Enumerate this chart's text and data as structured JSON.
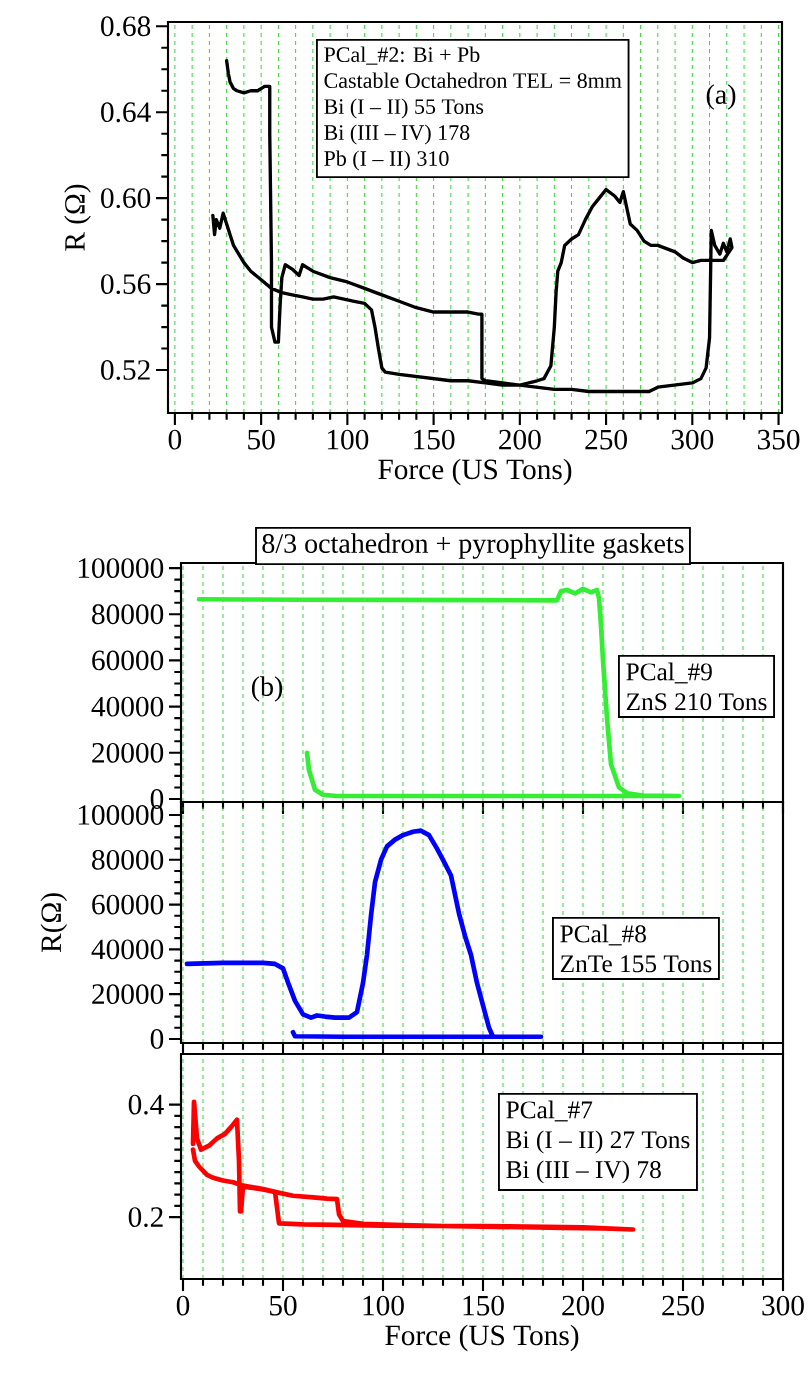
{
  "chart_data": [
    {
      "type": "line",
      "xlabel": "Force (US Tons)",
      "ylabel": "R (Ω)",
      "xlim": [
        -4,
        352
      ],
      "ylim": [
        0.5,
        0.682
      ],
      "xticks": [
        0,
        50,
        100,
        150,
        200,
        250,
        300,
        350
      ],
      "yticks": [
        0.52,
        0.56,
        {
          "value": 0.6,
          "label": "0.60"
        },
        0.64,
        0.68
      ],
      "grid": "x",
      "annotations": [
        "PCal_#2: Bi + Pb",
        "Castable Octahedron TEL = 8mm",
        "Bi (I – II) 55 Tons",
        "Bi (III – IV) 178",
        "Pb (I – II) 310",
        "(a)"
      ],
      "series": [
        {
          "color": "#000000",
          "x": [
            22,
            23,
            24,
            26,
            28,
            30,
            34,
            40,
            44,
            50,
            56,
            62,
            68,
            74,
            80,
            86,
            92,
            98,
            104,
            110,
            114,
            116,
            118,
            120,
            122,
            130,
            160,
            170,
            180,
            190,
            200,
            220,
            230,
            240,
            270,
            275,
            280,
            300,
            305,
            308,
            310,
            311,
            313,
            316,
            318,
            320,
            322,
            323,
            318,
            312,
            305,
            300,
            295,
            290,
            280,
            276,
            272,
            268,
            264,
            260,
            258,
            255,
            250,
            246,
            242,
            238,
            234,
            230,
            226,
            224,
            222,
            221,
            220,
            218,
            214,
            210,
            200,
            190,
            180,
            178,
            178,
            176,
            170,
            150,
            140,
            130,
            120,
            110,
            100,
            90,
            80,
            74,
            72,
            68,
            64,
            62,
            61,
            60,
            58,
            56,
            56,
            55,
            55,
            52,
            48,
            44,
            40,
            36,
            34,
            32,
            31,
            30
          ],
          "values": [
            0.592,
            0.583,
            0.59,
            0.586,
            0.593,
            0.588,
            0.578,
            0.57,
            0.566,
            0.562,
            0.558,
            0.556,
            0.555,
            0.554,
            0.553,
            0.553,
            0.554,
            0.553,
            0.552,
            0.551,
            0.548,
            0.54,
            0.53,
            0.521,
            0.519,
            0.518,
            0.515,
            0.515,
            0.514,
            0.513,
            0.513,
            0.511,
            0.511,
            0.51,
            0.51,
            0.51,
            0.512,
            0.514,
            0.516,
            0.521,
            0.535,
            0.585,
            0.578,
            0.574,
            0.579,
            0.575,
            0.581,
            0.577,
            0.571,
            0.571,
            0.571,
            0.57,
            0.572,
            0.575,
            0.578,
            0.578,
            0.58,
            0.585,
            0.588,
            0.603,
            0.598,
            0.601,
            0.604,
            0.6,
            0.596,
            0.59,
            0.583,
            0.581,
            0.578,
            0.57,
            0.566,
            0.556,
            0.54,
            0.522,
            0.516,
            0.515,
            0.513,
            0.514,
            0.515,
            0.516,
            0.546,
            0.546,
            0.547,
            0.547,
            0.549,
            0.552,
            0.555,
            0.558,
            0.561,
            0.563,
            0.566,
            0.569,
            0.564,
            0.567,
            0.569,
            0.563,
            0.55,
            0.533,
            0.533,
            0.54,
            0.57,
            0.63,
            0.652,
            0.652,
            0.65,
            0.65,
            0.649,
            0.65,
            0.651,
            0.654,
            0.658,
            0.664
          ]
        }
      ]
    },
    {
      "type": "line",
      "title": "8/3 octahedron + pyrophyllite gaskets",
      "xlim": [
        -1,
        300
      ],
      "ylim": [
        -1300,
        102200
      ],
      "xticks": [
        0,
        50,
        100,
        150,
        200,
        250,
        300
      ],
      "yticks": [
        0,
        20000,
        40000,
        60000,
        80000,
        100000
      ],
      "tick_labels": "y",
      "grid": "x",
      "annotations": [
        "(b)",
        "PCal_#9",
        "ZnS 210 Tons"
      ],
      "series": [
        {
          "color": "#33ee33",
          "x": [
            8,
            30,
            60,
            100,
            150,
            187,
            189,
            192,
            196,
            200,
            204,
            207,
            208,
            209,
            210,
            212,
            214,
            218,
            222,
            230,
            248,
            77,
            70,
            66,
            63,
            62
          ],
          "values": [
            86500,
            86400,
            86300,
            86200,
            86100,
            86000,
            90000,
            90500,
            89000,
            91000,
            89500,
            90500,
            87000,
            75000,
            60000,
            35000,
            15000,
            5000,
            2500,
            1500,
            1300,
            1300,
            1800,
            4000,
            12500,
            20000
          ]
        }
      ]
    },
    {
      "type": "line",
      "ylabel": "R(Ω)",
      "xlim": [
        -1,
        300
      ],
      "ylim": [
        -1800,
        105800
      ],
      "xticks": [
        0,
        50,
        100,
        150,
        200,
        250,
        300
      ],
      "yticks": [
        0,
        20000,
        40000,
        60000,
        80000,
        100000
      ],
      "tick_labels": "y",
      "grid": "x",
      "annotations": [
        "PCal_#8",
        "ZnTe 155 Tons"
      ],
      "series": [
        {
          "color": "#0000ff",
          "x": [
            2,
            20,
            40,
            46,
            50,
            53,
            56,
            60,
            64,
            67,
            71,
            76,
            83,
            87,
            90,
            92,
            94,
            96,
            99,
            102,
            106,
            110,
            115,
            119,
            123,
            127,
            130,
            134,
            138,
            141,
            144,
            147,
            150,
            153,
            155,
            179,
            120,
            80,
            56,
            55
          ],
          "values": [
            33500,
            34000,
            34000,
            33500,
            31500,
            24000,
            17000,
            11000,
            9500,
            10500,
            10000,
            9500,
            9500,
            12000,
            25000,
            37500,
            55000,
            70000,
            80000,
            86000,
            89000,
            91000,
            92500,
            93000,
            91000,
            85000,
            80000,
            73000,
            56000,
            46000,
            37500,
            25000,
            15000,
            5000,
            1000,
            1000,
            1000,
            1000,
            1200,
            3000
          ]
        }
      ]
    },
    {
      "type": "line",
      "xlabel": "Force (US Tons)",
      "xlim": [
        -1,
        300
      ],
      "ylim": [
        0.09,
        0.49
      ],
      "xticks": [
        0,
        50,
        100,
        150,
        200,
        250,
        300
      ],
      "yticks": [
        0.2,
        0.4
      ],
      "grid": "x",
      "annotations": [
        "PCal_#7",
        "Bi (I – II) 27 Tons",
        "Bi (III – IV) 78"
      ],
      "series": [
        {
          "color": "#ff0000",
          "x": [
            5,
            5.5,
            7,
            9,
            13,
            17,
            21,
            24,
            27,
            28,
            28.5,
            29,
            30,
            35,
            40,
            47,
            55,
            65,
            72,
            77,
            78,
            80,
            90,
            110,
            130,
            150,
            170,
            190,
            210,
            225,
            200,
            150,
            100,
            60,
            48,
            47,
            46,
            40,
            30,
            25,
            20,
            15,
            12,
            8,
            6,
            5
          ],
          "values": [
            0.33,
            0.405,
            0.34,
            0.32,
            0.327,
            0.34,
            0.348,
            0.36,
            0.373,
            0.3,
            0.21,
            0.21,
            0.254,
            0.252,
            0.249,
            0.244,
            0.238,
            0.235,
            0.233,
            0.232,
            0.205,
            0.193,
            0.188,
            0.186,
            0.184,
            0.183,
            0.182,
            0.181,
            0.18,
            0.178,
            0.182,
            0.184,
            0.185,
            0.187,
            0.189,
            0.217,
            0.245,
            0.25,
            0.256,
            0.262,
            0.265,
            0.27,
            0.275,
            0.29,
            0.3,
            0.32
          ]
        }
      ]
    }
  ]
}
